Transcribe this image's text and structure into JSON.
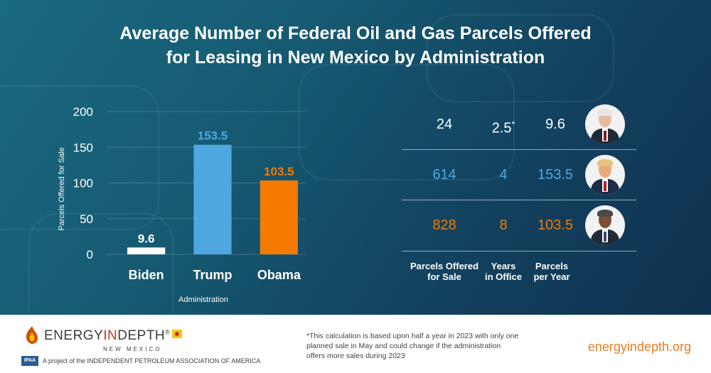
{
  "title": {
    "line1": "Average Number of Federal Oil and Gas Parcels Offered",
    "line2": "for Leasing in New Mexico by Administration"
  },
  "colors": {
    "background_top": "#1a6a80",
    "background_bottom": "#0f3250",
    "biden": "#ffffff",
    "trump": "#4ea8de",
    "obama": "#f47a00",
    "accent": "#e67e22"
  },
  "chart_data": {
    "type": "bar",
    "categories": [
      "Biden",
      "Trump",
      "Obama"
    ],
    "values": [
      9.6,
      153.5,
      103.5
    ],
    "data_labels": [
      "9.6",
      "153.5",
      "103.5"
    ],
    "bar_colors": [
      "#ffffff",
      "#4ea8de",
      "#f47a00"
    ],
    "label_colors": [
      "#ffffff",
      "#4ea8de",
      "#f47a00"
    ],
    "title": "",
    "xlabel": "Administration",
    "ylabel": "Parcels Offered for Sale",
    "ylim": [
      0,
      200
    ],
    "yticks": [
      0,
      50,
      100,
      150,
      200
    ],
    "grid": true
  },
  "table": {
    "rows": [
      {
        "admin": "Biden",
        "parcels": "24",
        "years": "2.5",
        "years_mark": "*",
        "per_year": "9.6",
        "color": "#ffffff",
        "avatar_icon": "biden-portrait-icon"
      },
      {
        "admin": "Trump",
        "parcels": "614",
        "years": "4",
        "years_mark": "",
        "per_year": "153.5",
        "color": "#4ea8de",
        "avatar_icon": "trump-portrait-icon"
      },
      {
        "admin": "Obama",
        "parcels": "828",
        "years": "8",
        "years_mark": "",
        "per_year": "103.5",
        "color": "#f47a00",
        "avatar_icon": "obama-portrait-icon"
      }
    ],
    "headers": {
      "parcels": [
        "Parcels Offered",
        "for Sale"
      ],
      "years": [
        "Years",
        "in Office"
      ],
      "per_year": [
        "Parcels",
        "per Year"
      ]
    }
  },
  "footer": {
    "logo": {
      "energy": "ENERGY",
      "in": "IN",
      "depth": "DEPTH",
      "reg": "®",
      "sub": "NEW MEXICO",
      "icon": "energyindepth-flame-icon"
    },
    "ipaa_logo": "IPAA",
    "ipaa_text": "A project of the INDEPENDENT PETROLEUM ASSOCIATION OF AMERICA",
    "footnote": "*This calculation is based upon half a year in 2023 with only one planned sale in May and could change if the administration offers more sales during 2023",
    "site": "energyindepth.org"
  }
}
